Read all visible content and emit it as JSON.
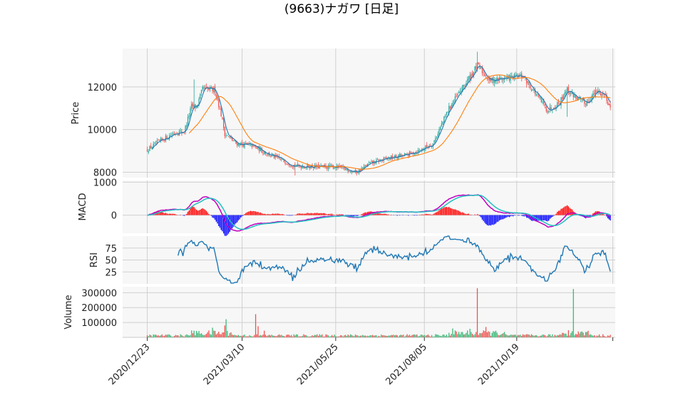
{
  "title": "(9663)ナガワ  [日足]",
  "colors": {
    "up": "#26a69a",
    "down": "#ef5350",
    "sma_short": "#1f77b4",
    "sma_long": "#ff7f0e",
    "macd": "#c000c0",
    "signal": "#20c0c0",
    "hist_pos": "#ff0000",
    "hist_neg": "#0000ff",
    "rsi": "#1f77b4",
    "vol_up": "#3cb878",
    "vol_down": "#ef5350"
  },
  "chart_data": {
    "type": "candlestick",
    "x_ticks": [
      "2020/12/23",
      "2021/03/10",
      "2021/05/25",
      "2021/08/05",
      "2021/10/19"
    ],
    "x_tick_days": [
      0,
      77,
      153,
      225,
      300
    ],
    "x_range_days": [
      -20,
      380
    ],
    "last_day": 376,
    "price": {
      "ylabel": "Price",
      "yticks": [
        8000,
        10000,
        12000
      ],
      "ylim": [
        7750,
        13800
      ],
      "keypoints": [
        [
          0,
          9050
        ],
        [
          10,
          9450
        ],
        [
          22,
          9850
        ],
        [
          30,
          9900
        ],
        [
          36,
          11100
        ],
        [
          40,
          11050
        ],
        [
          45,
          11900
        ],
        [
          55,
          11850
        ],
        [
          60,
          10700
        ],
        [
          63,
          9800
        ],
        [
          72,
          9350
        ],
        [
          85,
          9250
        ],
        [
          100,
          8800
        ],
        [
          120,
          8300
        ],
        [
          140,
          8250
        ],
        [
          155,
          8250
        ],
        [
          170,
          8000
        ],
        [
          180,
          8400
        ],
        [
          195,
          8650
        ],
        [
          210,
          8800
        ],
        [
          220,
          9000
        ],
        [
          232,
          9350
        ],
        [
          245,
          11000
        ],
        [
          268,
          13000
        ],
        [
          278,
          12300
        ],
        [
          290,
          12400
        ],
        [
          305,
          12500
        ],
        [
          315,
          11700
        ],
        [
          325,
          10900
        ],
        [
          335,
          11300
        ],
        [
          340,
          11900
        ],
        [
          355,
          11200
        ],
        [
          365,
          11800
        ],
        [
          372,
          11600
        ],
        [
          376,
          11000
        ]
      ],
      "sma_short_period": 5,
      "sma_long_period": 25
    },
    "macd": {
      "ylabel": "MACD",
      "yticks": [
        0,
        1000
      ],
      "ylim": [
        -550,
        1050
      ]
    },
    "rsi": {
      "ylabel": "RSI",
      "yticks": [
        25,
        50,
        75
      ],
      "ylim": [
        0,
        100
      ]
    },
    "volume": {
      "ylabel": "Volume",
      "yticks": [
        100000,
        200000,
        300000
      ],
      "tick_labels": [
        "100000",
        "200000",
        "300000"
      ],
      "ylim": [
        0,
        340000
      ],
      "baseline": 12000,
      "spikes": [
        [
          38,
          45000,
          "up"
        ],
        [
          53,
          65000,
          "up"
        ],
        [
          63,
          80000,
          "down"
        ],
        [
          64,
          122000,
          "up"
        ],
        [
          88,
          156000,
          "down"
        ],
        [
          90,
          75000,
          "down"
        ],
        [
          95,
          45000,
          "down"
        ],
        [
          248,
          60000,
          "up"
        ],
        [
          268,
          330000,
          "down"
        ],
        [
          262,
          58000,
          "up"
        ],
        [
          275,
          70000,
          "down"
        ],
        [
          281,
          42000,
          "up"
        ],
        [
          346,
          325000,
          "up"
        ],
        [
          342,
          48000,
          "down"
        ],
        [
          350,
          40000,
          "down"
        ]
      ]
    }
  }
}
